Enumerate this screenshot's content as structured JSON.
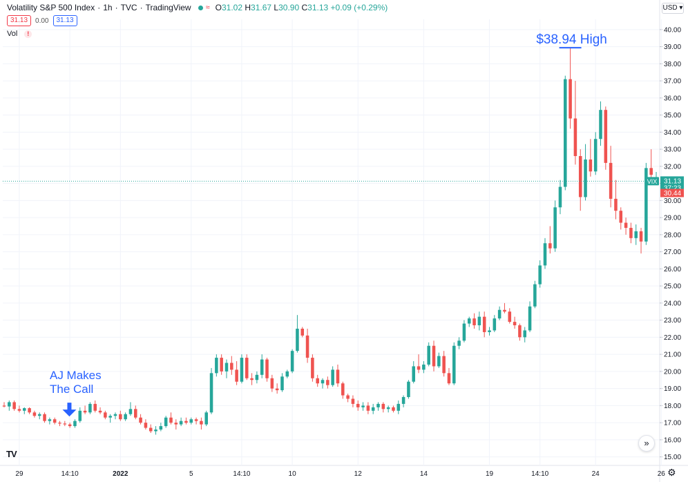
{
  "header": {
    "symbol_name": "Volatility S&P 500 Index",
    "interval": "1h",
    "exchange": "TVC",
    "source": "TradingView",
    "ohlc": {
      "o_label": "O",
      "o_value": "31.02",
      "h_label": "H",
      "h_value": "31.67",
      "l_label": "L",
      "l_value": "30.90",
      "c_label": "C",
      "c_value": "31.13",
      "change": "+0.09 (+0.29%)"
    }
  },
  "quote": {
    "bid": "31.13",
    "spread": "0.00",
    "ask": "31.13"
  },
  "volume_label": "Vol",
  "currency_button": "USD",
  "price_markers": {
    "symbol_tag": "VIX",
    "last_price": "31.13",
    "countdown": "37:23",
    "prev_price": "30.44"
  },
  "colors": {
    "up": "#26a69a",
    "down": "#ef5350",
    "annotation": "#2962ff",
    "grid": "#f0f3fa"
  },
  "chart_data": {
    "type": "candlestick",
    "y_range": [
      14.5,
      40.6
    ],
    "y_ticks": [
      "15.00",
      "16.00",
      "17.00",
      "18.00",
      "19.00",
      "20.00",
      "21.00",
      "22.00",
      "23.00",
      "24.00",
      "25.00",
      "26.00",
      "27.00",
      "28.00",
      "29.00",
      "30.00",
      "31.00",
      "32.00",
      "33.00",
      "34.00",
      "35.00",
      "36.00",
      "37.00",
      "38.00",
      "39.00",
      "40.00"
    ],
    "x_ticks": [
      {
        "label": "29",
        "bold": false,
        "index": 3
      },
      {
        "label": "14:10",
        "bold": false,
        "index": 13
      },
      {
        "label": "2022",
        "bold": true,
        "index": 23
      },
      {
        "label": "5",
        "bold": false,
        "index": 37
      },
      {
        "label": "14:10",
        "bold": false,
        "index": 47
      },
      {
        "label": "10",
        "bold": false,
        "index": 57
      },
      {
        "label": "12",
        "bold": false,
        "index": 70
      },
      {
        "label": "14",
        "bold": false,
        "index": 83
      },
      {
        "label": "19",
        "bold": false,
        "index": 96
      },
      {
        "label": "14:10",
        "bold": false,
        "index": 106
      },
      {
        "label": "24",
        "bold": false,
        "index": 117
      },
      {
        "label": "26",
        "bold": false,
        "index": 130
      }
    ],
    "candles": [
      [
        18.0,
        18.2,
        17.9,
        17.95
      ],
      [
        17.95,
        18.3,
        17.7,
        18.2
      ],
      [
        18.2,
        18.3,
        17.7,
        17.8
      ],
      [
        17.8,
        18.0,
        17.6,
        17.7
      ],
      [
        17.7,
        17.9,
        17.5,
        17.85
      ],
      [
        17.85,
        17.9,
        17.5,
        17.6
      ],
      [
        17.6,
        17.7,
        17.3,
        17.4
      ],
      [
        17.4,
        17.6,
        17.2,
        17.5
      ],
      [
        17.5,
        17.6,
        17.0,
        17.1
      ],
      [
        17.1,
        17.3,
        16.9,
        17.2
      ],
      [
        17.2,
        17.3,
        16.9,
        17.0
      ],
      [
        17.0,
        17.1,
        16.8,
        16.95
      ],
      [
        16.95,
        17.1,
        16.8,
        16.9
      ],
      [
        16.9,
        17.0,
        16.7,
        16.8
      ],
      [
        16.8,
        17.2,
        16.7,
        17.1
      ],
      [
        17.1,
        17.9,
        17.0,
        17.7
      ],
      [
        17.7,
        18.0,
        17.5,
        17.6
      ],
      [
        17.6,
        18.2,
        17.5,
        18.1
      ],
      [
        18.1,
        18.3,
        17.6,
        17.7
      ],
      [
        17.7,
        17.9,
        17.5,
        17.6
      ],
      [
        17.6,
        17.7,
        17.2,
        17.3
      ],
      [
        17.3,
        17.5,
        17.0,
        17.4
      ],
      [
        17.4,
        17.6,
        17.2,
        17.5
      ],
      [
        17.5,
        17.7,
        17.1,
        17.2
      ],
      [
        17.2,
        17.6,
        17.1,
        17.5
      ],
      [
        17.5,
        18.2,
        17.4,
        17.8
      ],
      [
        17.8,
        18.0,
        17.2,
        17.3
      ],
      [
        17.3,
        17.5,
        16.9,
        17.0
      ],
      [
        17.0,
        17.2,
        16.6,
        16.7
      ],
      [
        16.7,
        16.9,
        16.4,
        16.5
      ],
      [
        16.5,
        16.8,
        16.3,
        16.6
      ],
      [
        16.6,
        17.0,
        16.5,
        16.8
      ],
      [
        16.8,
        17.4,
        16.7,
        17.3
      ],
      [
        17.3,
        17.6,
        16.9,
        17.0
      ],
      [
        17.0,
        17.2,
        16.6,
        16.9
      ],
      [
        16.9,
        17.3,
        16.8,
        17.1
      ],
      [
        17.1,
        17.3,
        16.9,
        17.0
      ],
      [
        17.0,
        17.3,
        16.9,
        17.2
      ],
      [
        17.2,
        17.3,
        16.9,
        17.1
      ],
      [
        17.1,
        17.3,
        16.6,
        16.9
      ],
      [
        16.9,
        17.7,
        16.8,
        17.6
      ],
      [
        17.6,
        20.2,
        17.5,
        19.9
      ],
      [
        19.9,
        21.0,
        19.7,
        20.8
      ],
      [
        20.8,
        21.0,
        19.8,
        20.0
      ],
      [
        20.0,
        20.7,
        19.6,
        20.5
      ],
      [
        20.5,
        20.9,
        19.8,
        20.1
      ],
      [
        20.1,
        20.6,
        19.2,
        19.4
      ],
      [
        19.4,
        21.0,
        19.3,
        20.8
      ],
      [
        20.8,
        21.0,
        19.5,
        19.6
      ],
      [
        19.6,
        19.9,
        19.2,
        19.5
      ],
      [
        19.5,
        20.0,
        19.3,
        19.8
      ],
      [
        19.8,
        21.0,
        19.6,
        20.7
      ],
      [
        20.7,
        20.8,
        19.4,
        19.6
      ],
      [
        19.6,
        19.8,
        18.8,
        19.0
      ],
      [
        19.0,
        19.3,
        18.7,
        18.9
      ],
      [
        18.9,
        19.9,
        18.8,
        19.7
      ],
      [
        19.7,
        20.1,
        19.6,
        20.0
      ],
      [
        20.0,
        21.3,
        19.9,
        21.2
      ],
      [
        21.2,
        23.3,
        21.1,
        22.5
      ],
      [
        22.5,
        22.6,
        22.0,
        22.1
      ],
      [
        22.1,
        22.5,
        20.5,
        20.8
      ],
      [
        20.8,
        21.0,
        19.4,
        19.6
      ],
      [
        19.6,
        19.8,
        19.1,
        19.3
      ],
      [
        19.3,
        19.6,
        19.0,
        19.5
      ],
      [
        19.5,
        19.7,
        19.0,
        19.2
      ],
      [
        19.2,
        20.3,
        19.1,
        20.1
      ],
      [
        20.1,
        20.4,
        19.1,
        19.3
      ],
      [
        19.3,
        19.4,
        18.4,
        18.6
      ],
      [
        18.6,
        18.7,
        18.2,
        18.4
      ],
      [
        18.4,
        18.6,
        17.9,
        18.1
      ],
      [
        18.1,
        18.3,
        17.7,
        17.9
      ],
      [
        17.9,
        18.2,
        17.7,
        18.0
      ],
      [
        18.0,
        18.2,
        17.5,
        17.7
      ],
      [
        17.7,
        18.1,
        17.5,
        17.9
      ],
      [
        17.9,
        18.2,
        17.7,
        18.1
      ],
      [
        18.1,
        18.2,
        17.6,
        17.8
      ],
      [
        17.8,
        18.0,
        17.6,
        17.9
      ],
      [
        17.9,
        18.0,
        17.6,
        17.7
      ],
      [
        17.7,
        18.3,
        17.5,
        18.1
      ],
      [
        18.1,
        18.6,
        17.9,
        18.5
      ],
      [
        18.5,
        19.5,
        18.4,
        19.4
      ],
      [
        19.4,
        20.6,
        19.3,
        20.3
      ],
      [
        20.3,
        21.0,
        19.9,
        20.1
      ],
      [
        20.1,
        20.6,
        19.9,
        20.4
      ],
      [
        20.4,
        21.7,
        20.3,
        21.5
      ],
      [
        21.5,
        21.8,
        20.0,
        20.3
      ],
      [
        20.3,
        21.1,
        20.2,
        20.9
      ],
      [
        20.9,
        21.2,
        19.7,
        19.9
      ],
      [
        19.9,
        20.2,
        19.2,
        19.3
      ],
      [
        19.3,
        21.7,
        19.2,
        21.5
      ],
      [
        21.5,
        22.0,
        21.3,
        21.8
      ],
      [
        21.8,
        23.0,
        21.7,
        22.8
      ],
      [
        22.8,
        23.2,
        22.6,
        23.1
      ],
      [
        23.1,
        23.4,
        22.5,
        22.7
      ],
      [
        22.7,
        23.5,
        22.4,
        23.2
      ],
      [
        23.2,
        23.5,
        22.0,
        22.3
      ],
      [
        22.3,
        22.6,
        22.1,
        22.4
      ],
      [
        22.4,
        23.3,
        22.3,
        23.1
      ],
      [
        23.1,
        23.8,
        23.0,
        23.6
      ],
      [
        23.6,
        24.0,
        23.4,
        23.5
      ],
      [
        23.5,
        23.7,
        22.8,
        22.9
      ],
      [
        22.9,
        23.2,
        22.5,
        22.7
      ],
      [
        22.7,
        22.8,
        21.8,
        22.0
      ],
      [
        22.0,
        22.6,
        21.7,
        22.4
      ],
      [
        22.4,
        24.1,
        22.3,
        23.8
      ],
      [
        23.8,
        25.3,
        23.7,
        25.1
      ],
      [
        25.1,
        26.5,
        24.9,
        26.2
      ],
      [
        26.2,
        27.8,
        26.0,
        27.5
      ],
      [
        27.5,
        28.5,
        26.9,
        27.2
      ],
      [
        27.2,
        30.0,
        27.0,
        29.6
      ],
      [
        29.6,
        31.2,
        29.2,
        30.8
      ],
      [
        30.8,
        37.3,
        30.6,
        37.1
      ],
      [
        37.1,
        38.94,
        34.2,
        34.8
      ],
      [
        34.8,
        37.0,
        32.1,
        32.6
      ],
      [
        32.6,
        33.0,
        29.4,
        30.2
      ],
      [
        30.2,
        33.3,
        30.0,
        32.4
      ],
      [
        32.4,
        33.6,
        31.4,
        31.7
      ],
      [
        31.7,
        34.0,
        31.5,
        33.6
      ],
      [
        33.6,
        35.8,
        33.2,
        35.3
      ],
      [
        35.3,
        35.5,
        31.8,
        32.2
      ],
      [
        32.2,
        33.2,
        29.6,
        30.1
      ],
      [
        30.1,
        31.2,
        28.9,
        29.4
      ],
      [
        29.4,
        29.6,
        28.3,
        28.7
      ],
      [
        28.7,
        29.0,
        28.0,
        28.4
      ],
      [
        28.4,
        28.7,
        27.5,
        27.8
      ],
      [
        27.8,
        28.6,
        27.4,
        28.2
      ],
      [
        28.2,
        28.4,
        26.9,
        27.6
      ],
      [
        27.6,
        32.2,
        27.4,
        31.9
      ],
      [
        31.9,
        33.0,
        31.2,
        31.5
      ],
      [
        31.02,
        31.67,
        30.9,
        31.13
      ]
    ]
  },
  "annotations": {
    "high_label": "$38.94 High",
    "call_label_line1": "AJ Makes",
    "call_label_line2": "The Call"
  }
}
